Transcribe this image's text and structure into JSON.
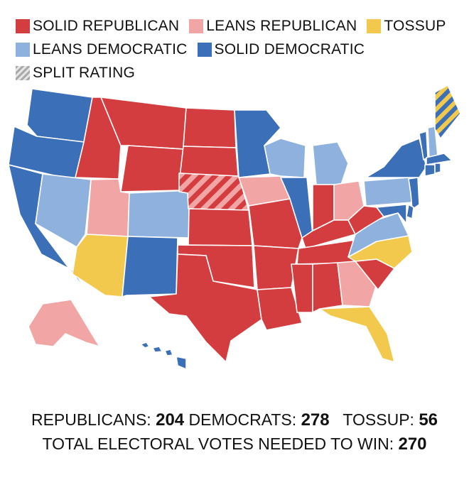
{
  "colors": {
    "solid_republican": "#d43d3f",
    "leans_republican": "#f2a5a5",
    "tossup": "#f2c94c",
    "leans_democratic": "#8fb1de",
    "solid_democratic": "#3b6fb8"
  },
  "legend": {
    "solid_republican": "SOLID REPUBLICAN",
    "leans_republican": "LEANS REPUBLICAN",
    "tossup": "TOSSUP",
    "leans_democratic": "LEANS DEMOCRATIC",
    "solid_democratic": "SOLID DEMOCRATIC",
    "split_rating": "SPLIT RATING"
  },
  "totals": {
    "republicans_label": "REPUBLICANS:",
    "republicans_value": "204",
    "democrats_label": "DEMOCRATS:",
    "democrats_value": "278",
    "tossup_label": "TOSSUP:",
    "tossup_value": "56",
    "needed_label": "TOTAL ELECTORAL VOTES NEEDED TO WIN:",
    "needed_value": "270"
  },
  "states": {
    "WA": "solid_democratic",
    "OR": "solid_democratic",
    "CA": "solid_democratic",
    "ID": "solid_republican",
    "NV": "leans_democratic",
    "UT": "leans_republican",
    "AZ": "tossup",
    "MT": "solid_republican",
    "WY": "solid_republican",
    "CO": "leans_democratic",
    "NM": "solid_democratic",
    "ND": "solid_republican",
    "SD": "solid_republican",
    "NE": "split_leans_republican_solid_republican",
    "KS": "solid_republican",
    "OK": "solid_republican",
    "TX": "solid_republican",
    "MN": "solid_democratic",
    "IA": "leans_republican",
    "MO": "solid_republican",
    "AR": "solid_republican",
    "LA": "solid_republican",
    "WI": "leans_democratic",
    "IL": "solid_democratic",
    "MI": "leans_democratic",
    "IN": "solid_republican",
    "OH": "leans_republican",
    "KY": "solid_republican",
    "TN": "solid_republican",
    "MS": "solid_republican",
    "AL": "solid_republican",
    "GA": "leans_republican",
    "FL": "tossup",
    "SC": "solid_republican",
    "NC": "tossup",
    "VA": "leans_democratic",
    "WV": "solid_republican",
    "PA": "leans_democratic",
    "NY": "solid_democratic",
    "VT": "solid_democratic",
    "NH": "leans_democratic",
    "ME": "split_solid_democratic_tossup",
    "MA": "solid_democratic",
    "CT": "solid_democratic",
    "RI": "solid_democratic",
    "NJ": "solid_democratic",
    "DE": "solid_democratic",
    "MD": "solid_democratic",
    "AK": "leans_republican",
    "HI": "solid_democratic"
  }
}
